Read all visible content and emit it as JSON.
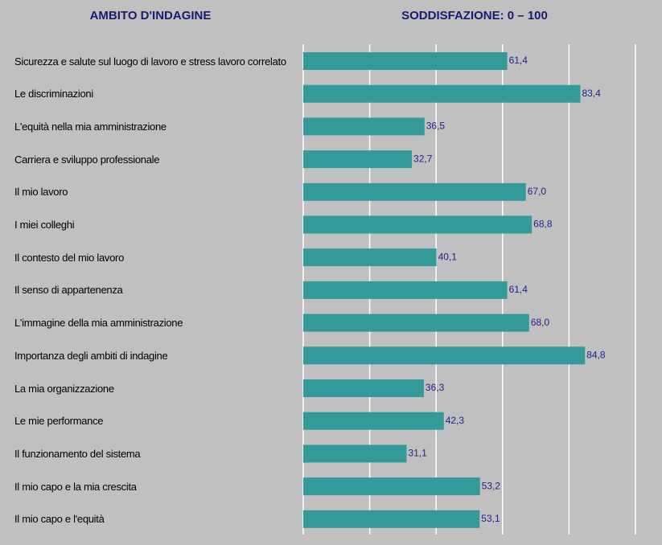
{
  "chart_data": {
    "type": "bar",
    "orientation": "horizontal",
    "column_headers": [
      "AMBITO D'INDAGINE",
      "SODDISFAZIONE: 0 – 100"
    ],
    "categories": [
      "Sicurezza e salute sul luogo di lavoro e stress lavoro correlato",
      "Le discriminazioni",
      "L'equità nella mia amministrazione",
      "Carriera e sviluppo professionale",
      "Il mio lavoro",
      "I miei colleghi",
      "Il contesto del mio lavoro",
      "Il senso di appartenenza",
      "L'immagine della mia amministrazione",
      "Importanza degli ambiti di indagine",
      "La mia organizzazione",
      "Le mie performance",
      "Il funzionamento del sistema",
      "Il mio capo e la mia crescita",
      "Il mio capo e l'equità"
    ],
    "values": [
      61.4,
      83.4,
      36.5,
      32.7,
      67.0,
      68.8,
      40.1,
      61.4,
      68.0,
      84.8,
      36.3,
      42.3,
      31.1,
      53.2,
      53.1
    ],
    "value_labels": [
      "61,4",
      "83,4",
      "36,5",
      "32,7",
      "67,0",
      "68,8",
      "40,1",
      "61,4",
      "68,0",
      "84,8",
      "36,3",
      "42,3",
      "31,1",
      "53,2",
      "53,1"
    ],
    "color": "#339999",
    "xlim": [
      0,
      100
    ],
    "xticks": [
      0,
      20,
      40,
      60,
      80,
      100
    ],
    "grid": true
  }
}
